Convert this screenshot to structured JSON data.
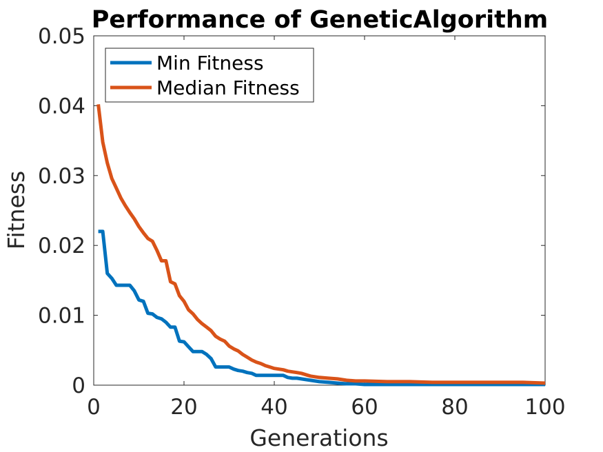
{
  "chart_data": {
    "type": "line",
    "title": "Performance of GeneticAlgorithm",
    "xlabel": "Generations",
    "ylabel": "Fitness",
    "xlim": [
      0,
      100
    ],
    "ylim": [
      0,
      0.05
    ],
    "xticks": [
      "0",
      "20",
      "40",
      "60",
      "80",
      "100"
    ],
    "yticks": [
      "0",
      "0.01",
      "0.02",
      "0.03",
      "0.04",
      "0.05"
    ],
    "grid": false,
    "legend_position": "top-left",
    "series": [
      {
        "name": "Min Fitness",
        "color": "#0072BD",
        "x": [
          1,
          2,
          3,
          4,
          5,
          6,
          7,
          8,
          9,
          10,
          11,
          12,
          13,
          14,
          15,
          16,
          17,
          18,
          19,
          20,
          21,
          22,
          23,
          24,
          25,
          26,
          27,
          28,
          29,
          30,
          31,
          32,
          33,
          34,
          35,
          36,
          37,
          38,
          39,
          40,
          41,
          42,
          43,
          44,
          45,
          46,
          47,
          48,
          49,
          50,
          52,
          54,
          56,
          58,
          60,
          65,
          70,
          75,
          80,
          85,
          90,
          95,
          100
        ],
        "y": [
          0.022,
          0.022,
          0.016,
          0.0153,
          0.0143,
          0.0143,
          0.0143,
          0.0143,
          0.0135,
          0.0122,
          0.012,
          0.0103,
          0.0102,
          0.0097,
          0.0095,
          0.009,
          0.0083,
          0.0083,
          0.0063,
          0.0062,
          0.0055,
          0.0048,
          0.0048,
          0.0048,
          0.0044,
          0.0038,
          0.0026,
          0.0026,
          0.0026,
          0.0026,
          0.0023,
          0.0021,
          0.002,
          0.0018,
          0.0017,
          0.0014,
          0.0014,
          0.0014,
          0.0014,
          0.0014,
          0.0014,
          0.0014,
          0.0011,
          0.001,
          0.001,
          0.0009,
          0.0008,
          0.0007,
          0.0006,
          0.0005,
          0.0004,
          0.0003,
          0.0002,
          0.0002,
          0.0001,
          0.0001,
          0.0001,
          0.0001,
          0.0001,
          0.0001,
          0.0001,
          0.0001,
          0.0001
        ]
      },
      {
        "name": "Median Fitness",
        "color": "#D95319",
        "x": [
          1,
          2,
          3,
          4,
          5,
          6,
          7,
          8,
          9,
          10,
          11,
          12,
          13,
          14,
          15,
          16,
          17,
          18,
          19,
          20,
          21,
          22,
          23,
          24,
          25,
          26,
          27,
          28,
          29,
          30,
          31,
          32,
          33,
          34,
          35,
          36,
          37,
          38,
          39,
          40,
          41,
          42,
          43,
          44,
          45,
          46,
          47,
          48,
          49,
          50,
          52,
          54,
          56,
          58,
          60,
          65,
          70,
          75,
          80,
          85,
          90,
          95,
          100
        ],
        "y": [
          0.0402,
          0.0348,
          0.0318,
          0.0296,
          0.0282,
          0.0268,
          0.0257,
          0.0247,
          0.0238,
          0.0227,
          0.0218,
          0.021,
          0.0206,
          0.0193,
          0.0178,
          0.0178,
          0.0148,
          0.0145,
          0.0128,
          0.012,
          0.0108,
          0.0102,
          0.0094,
          0.0088,
          0.0083,
          0.0078,
          0.007,
          0.0066,
          0.0063,
          0.0056,
          0.0052,
          0.0049,
          0.0044,
          0.004,
          0.0036,
          0.0033,
          0.0031,
          0.0028,
          0.0026,
          0.0024,
          0.0023,
          0.0022,
          0.002,
          0.0019,
          0.0018,
          0.0017,
          0.0015,
          0.0013,
          0.0012,
          0.0011,
          0.001,
          0.0009,
          0.0007,
          0.0006,
          0.0006,
          0.0005,
          0.0005,
          0.0004,
          0.0004,
          0.0004,
          0.0004,
          0.0004,
          0.0003
        ]
      }
    ]
  }
}
